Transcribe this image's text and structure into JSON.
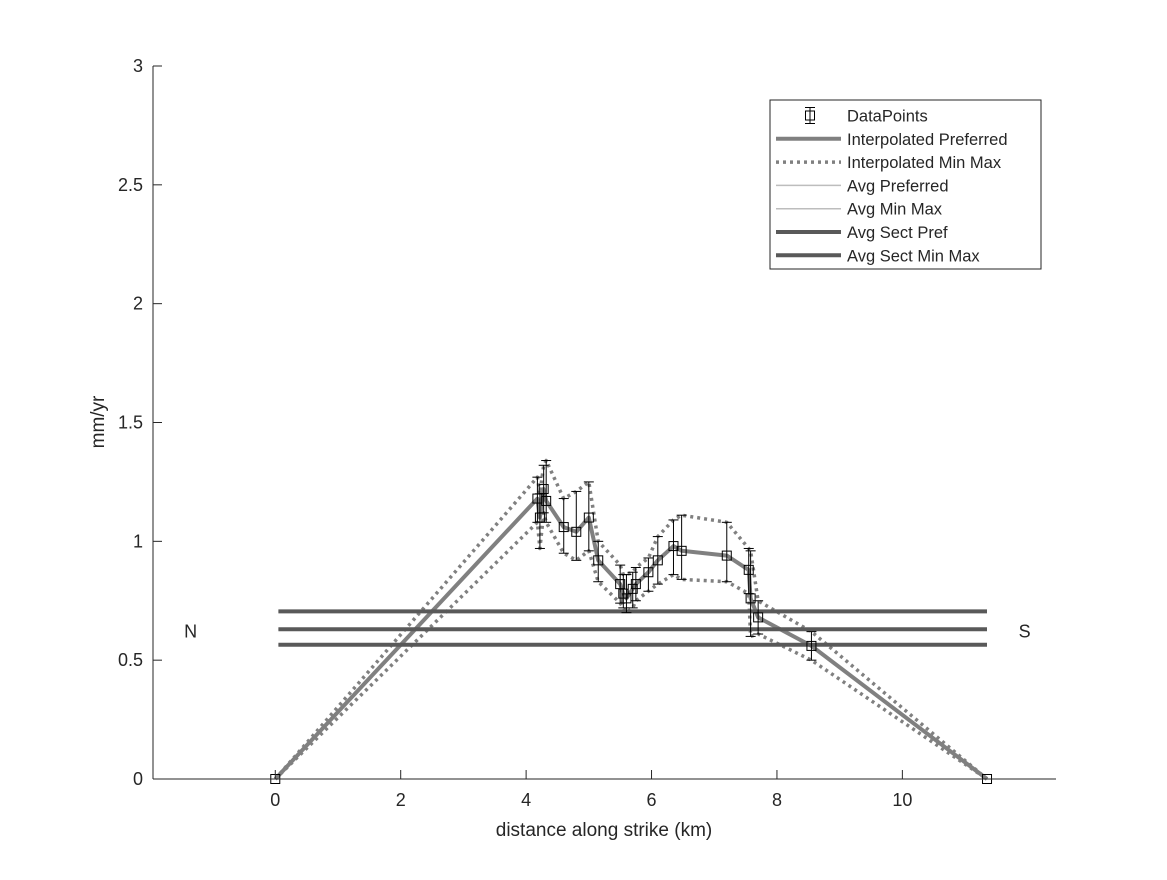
{
  "chart_data": {
    "type": "line",
    "title": "",
    "xlabel": "distance along strike (km)",
    "ylabel": "mm/yr",
    "xlim": [
      -1.95,
      12.45
    ],
    "ylim": [
      0,
      3
    ],
    "xticks": [
      0,
      2,
      4,
      6,
      8,
      10
    ],
    "yticks": [
      0,
      0.5,
      1,
      1.5,
      2,
      2.5,
      3
    ],
    "xtick_labels": [
      "0",
      "2",
      "4",
      "6",
      "8",
      "10"
    ],
    "ytick_labels": [
      "0",
      "0.5",
      "1",
      "1.5",
      "2",
      "2.5",
      "3"
    ],
    "grid": false,
    "legend_position": "top-right",
    "annotations": [
      {
        "text": "N",
        "x": -1.35,
        "y": 0.62
      },
      {
        "text": "S",
        "x": 11.95,
        "y": 0.62
      }
    ],
    "colors": {
      "interp": "#808080",
      "avg": "#bdbdbd",
      "sect": "#595959",
      "points": "#000000"
    },
    "series": [
      {
        "name": "DataPoints",
        "style": "errorbar-square",
        "x": [
          0,
          4.18,
          4.22,
          4.28,
          4.32,
          4.6,
          4.8,
          5.0,
          5.15,
          5.5,
          5.55,
          5.6,
          5.7,
          5.75,
          5.95,
          6.1,
          6.35,
          6.48,
          7.2,
          7.55,
          7.58,
          7.7,
          8.55,
          11.35
        ],
        "y": [
          0,
          1.18,
          1.1,
          1.22,
          1.17,
          1.06,
          1.04,
          1.1,
          0.92,
          0.82,
          0.78,
          0.76,
          0.8,
          0.82,
          0.87,
          0.92,
          0.98,
          0.96,
          0.94,
          0.88,
          0.76,
          0.68,
          0.56,
          0
        ],
        "ymin": [
          0,
          1.08,
          0.97,
          1.12,
          1.08,
          0.95,
          0.92,
          0.96,
          0.83,
          0.74,
          0.72,
          0.7,
          0.72,
          0.75,
          0.79,
          0.82,
          0.86,
          0.84,
          0.83,
          0.78,
          0.6,
          0.61,
          0.5,
          0
        ],
        "ymax": [
          0,
          1.27,
          1.2,
          1.32,
          1.34,
          1.18,
          1.21,
          1.25,
          1.0,
          0.9,
          0.86,
          0.86,
          0.87,
          0.89,
          0.93,
          1.02,
          1.09,
          1.11,
          1.08,
          0.97,
          0.96,
          0.75,
          0.62,
          0
        ]
      },
      {
        "name": "Interpolated Preferred",
        "style": "solid-thick",
        "x": [
          0,
          4.18,
          4.22,
          4.28,
          4.32,
          4.6,
          4.8,
          5.0,
          5.15,
          5.5,
          5.55,
          5.6,
          5.7,
          5.75,
          5.95,
          6.1,
          6.35,
          6.48,
          7.2,
          7.55,
          7.58,
          7.7,
          8.55,
          11.35
        ],
        "y": [
          0,
          1.18,
          1.1,
          1.22,
          1.17,
          1.06,
          1.04,
          1.1,
          0.92,
          0.82,
          0.78,
          0.76,
          0.8,
          0.82,
          0.87,
          0.92,
          0.98,
          0.96,
          0.94,
          0.88,
          0.76,
          0.68,
          0.56,
          0
        ]
      },
      {
        "name": "Interpolated Min Max",
        "style": "dotted",
        "parts": [
          {
            "x": [
              0,
              4.18,
              4.22,
              4.28,
              4.32,
              4.6,
              4.8,
              5.0,
              5.15,
              5.5,
              5.55,
              5.6,
              5.7,
              5.75,
              5.95,
              6.1,
              6.35,
              6.48,
              7.2,
              7.55,
              7.58,
              7.7,
              8.55,
              11.35
            ],
            "y": [
              0,
              1.08,
              0.97,
              1.12,
              1.08,
              0.95,
              0.92,
              0.96,
              0.83,
              0.74,
              0.72,
              0.7,
              0.72,
              0.75,
              0.79,
              0.82,
              0.86,
              0.84,
              0.83,
              0.78,
              0.6,
              0.61,
              0.5,
              0
            ]
          },
          {
            "x": [
              0,
              4.18,
              4.22,
              4.28,
              4.32,
              4.6,
              4.8,
              5.0,
              5.15,
              5.5,
              5.55,
              5.6,
              5.7,
              5.75,
              5.95,
              6.1,
              6.35,
              6.48,
              7.2,
              7.55,
              7.58,
              7.7,
              8.55,
              11.35
            ],
            "y": [
              0,
              1.27,
              1.2,
              1.32,
              1.34,
              1.18,
              1.21,
              1.25,
              1.0,
              0.9,
              0.86,
              0.86,
              0.87,
              0.89,
              0.93,
              1.02,
              1.09,
              1.11,
              1.08,
              0.97,
              0.96,
              0.75,
              0.62,
              0
            ]
          }
        ]
      },
      {
        "name": "Avg Preferred",
        "style": "hline-thin",
        "x": [
          0.05,
          11.35
        ],
        "y": [
          0.63,
          0.63
        ]
      },
      {
        "name": "Avg Min Max",
        "style": "hline-thin",
        "parts": [
          {
            "x": [
              0.05,
              11.35
            ],
            "y": [
              0.565,
              0.565
            ]
          },
          {
            "x": [
              0.05,
              11.35
            ],
            "y": [
              0.705,
              0.705
            ]
          }
        ]
      },
      {
        "name": "Avg Sect Pref",
        "style": "hline-thick",
        "x": [
          0.05,
          11.35
        ],
        "y": [
          0.63,
          0.63
        ]
      },
      {
        "name": "Avg Sect Min Max",
        "style": "hline-thick",
        "parts": [
          {
            "x": [
              0.05,
              11.35
            ],
            "y": [
              0.565,
              0.565
            ]
          },
          {
            "x": [
              0.05,
              11.35
            ],
            "y": [
              0.705,
              0.705
            ]
          }
        ]
      }
    ]
  }
}
